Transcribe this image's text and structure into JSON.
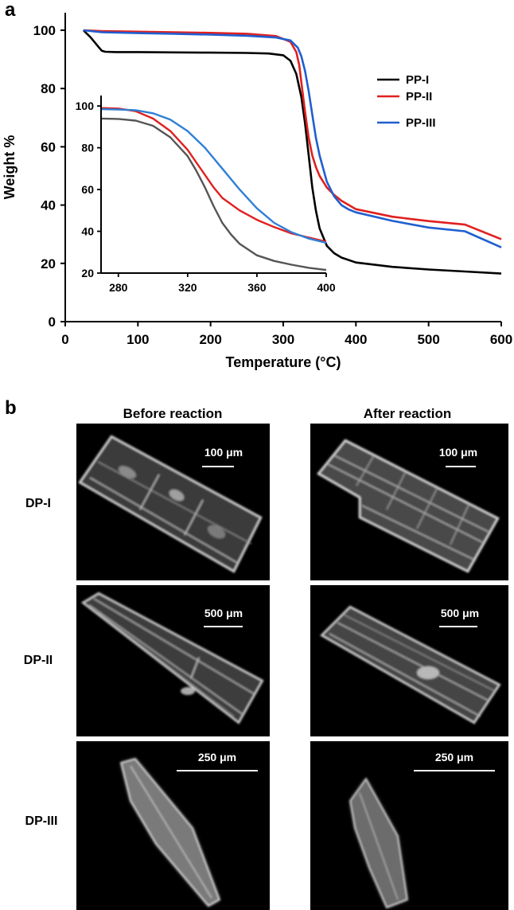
{
  "panel_a_label": "a",
  "panel_b_label": "b",
  "chart_data": [
    {
      "type": "line",
      "xlabel": "Temperature (°C)",
      "ylabel": "Weight %",
      "xlim": [
        0,
        600
      ],
      "ylim": [
        0,
        106
      ],
      "xticks": [
        0,
        100,
        200,
        300,
        400,
        500,
        600
      ],
      "yticks": [
        0,
        20,
        40,
        60,
        80,
        100
      ],
      "legend_position": "right, upper-middle",
      "series": [
        {
          "name": "PP-I",
          "color": "#000000",
          "x": [
            25,
            35,
            45,
            50,
            55,
            70,
            100,
            150,
            200,
            250,
            280,
            300,
            310,
            318,
            325,
            330,
            335,
            340,
            345,
            350,
            360,
            370,
            380,
            400,
            450,
            500,
            550,
            600
          ],
          "y": [
            100,
            97.5,
            94.5,
            93,
            92.6,
            92.5,
            92.5,
            92.4,
            92.3,
            92.2,
            92.0,
            91.4,
            89.5,
            85,
            77,
            68,
            57,
            46,
            38,
            32,
            26,
            23.5,
            22,
            20.3,
            18.8,
            17.9,
            17.2,
            16.5
          ]
        },
        {
          "name": "PP-II",
          "color": "#e0201f",
          "x": [
            25,
            50,
            100,
            150,
            200,
            250,
            290,
            310,
            318,
            322,
            326,
            330,
            335,
            340,
            345,
            350,
            360,
            370,
            380,
            400,
            450,
            500,
            550,
            600
          ],
          "y": [
            100,
            99.7,
            99.5,
            99.3,
            99.1,
            98.8,
            98.0,
            96.0,
            92.5,
            88,
            80,
            72,
            63,
            57,
            53,
            50,
            46,
            43.5,
            41.5,
            38.6,
            36,
            34.5,
            33.3,
            28.3
          ]
        },
        {
          "name": "PP-III",
          "color": "#1f5fd0",
          "x": [
            25,
            50,
            100,
            150,
            200,
            250,
            290,
            310,
            320,
            325,
            330,
            335,
            340,
            345,
            350,
            360,
            370,
            380,
            390,
            400,
            450,
            500,
            550,
            600
          ],
          "y": [
            100,
            99.3,
            99.0,
            98.8,
            98.5,
            98.1,
            97.5,
            96.5,
            94,
            91,
            86,
            79,
            71,
            63,
            57,
            48,
            43,
            40,
            38.5,
            37.5,
            34.6,
            32.3,
            31.0,
            25.5
          ]
        }
      ]
    },
    {
      "type": "line",
      "xlabel": "",
      "ylabel": "",
      "xlim": [
        270,
        400
      ],
      "ylim": [
        20,
        105
      ],
      "xticks": [
        280,
        320,
        360,
        400
      ],
      "yticks": [
        20,
        40,
        60,
        80,
        100
      ],
      "series": [
        {
          "color": "#555555",
          "x": [
            270,
            280,
            290,
            300,
            310,
            320,
            325,
            330,
            335,
            340,
            345,
            350,
            360,
            370,
            380,
            390,
            400
          ],
          "y": [
            94,
            93.8,
            93,
            90.5,
            85,
            76,
            69,
            61,
            52,
            44,
            38.5,
            34,
            28.5,
            25.8,
            24,
            22.5,
            21.5
          ]
        },
        {
          "color": "#e0201f",
          "x": [
            270,
            280,
            290,
            300,
            310,
            320,
            325,
            330,
            335,
            340,
            350,
            360,
            370,
            380,
            390,
            400
          ],
          "y": [
            99,
            98.8,
            97.5,
            94,
            88,
            79,
            73,
            67,
            61,
            56,
            50,
            45.5,
            42,
            39,
            37,
            35
          ]
        },
        {
          "color": "#2f7fd6",
          "x": [
            270,
            280,
            290,
            300,
            310,
            320,
            330,
            340,
            350,
            360,
            370,
            380,
            390,
            400
          ],
          "y": [
            98.5,
            98.3,
            98,
            96.5,
            93.5,
            88,
            80,
            70,
            60,
            51,
            44,
            39.5,
            36.5,
            34.5
          ]
        }
      ]
    }
  ],
  "panel_b": {
    "col_titles": [
      "Before reaction",
      "After reaction"
    ],
    "row_labels": [
      "DP-I",
      "DP-II",
      "DP-III"
    ],
    "scale_bars": [
      "100 μm",
      "100 μm",
      "500 μm",
      "500 μm",
      "250 μm",
      "250 μm"
    ]
  }
}
